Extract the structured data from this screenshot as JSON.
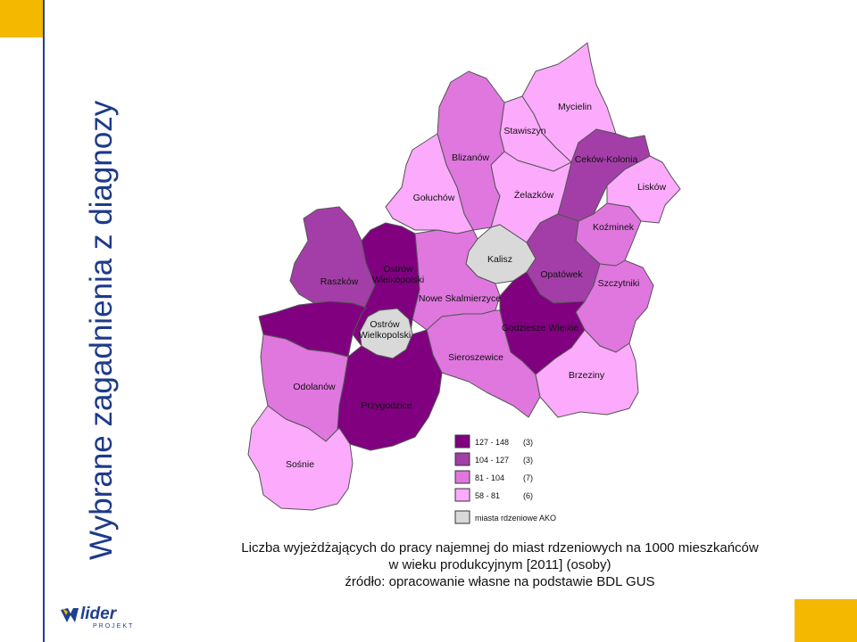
{
  "slide": {
    "title": "Wybrane zagadnienia z diagnozy",
    "caption_lines": [
      "Liczba wyjeżdżających do pracy najemnej do miast rdzeniowych na 1000 mieszkańców",
      "w wieku produkcyjnym [2011] (osoby)",
      "źródło: opracowanie własne na podstawie BDL GUS"
    ]
  },
  "colors": {
    "accent": "#f5b800",
    "title": "#1e3a8a",
    "class_1": "#800080",
    "class_2": "#a33ea8",
    "class_3": "#df77df",
    "class_4": "#fcaafc",
    "core": "#d9d9d9"
  },
  "map": {
    "regions": [
      {
        "name": "Mycielin",
        "cls": "class_4"
      },
      {
        "name": "Stawiszyn",
        "cls": "class_4"
      },
      {
        "name": "Ceków-Kolonia",
        "cls": "class_2"
      },
      {
        "name": "Blizanów",
        "cls": "class_3"
      },
      {
        "name": "Lisków",
        "cls": "class_4"
      },
      {
        "name": "Gołuchów",
        "cls": "class_4"
      },
      {
        "name": "Żelazków",
        "cls": "class_3"
      },
      {
        "name": "Koźminek",
        "cls": "class_3"
      },
      {
        "name": "Kalisz",
        "cls": "core"
      },
      {
        "name": "Raszków",
        "cls": "class_2"
      },
      {
        "name": "Ostrów Wielkopolski",
        "cls": "class_1"
      },
      {
        "name": "Opatówek",
        "cls": "class_2"
      },
      {
        "name": "Szczytniki",
        "cls": "class_3"
      },
      {
        "name": "Nowe Skalmierzyce",
        "cls": "class_3"
      },
      {
        "name": "Ostrów Wielkopolski",
        "cls": "core"
      },
      {
        "name": "Godziesze Wielkie",
        "cls": "class_1"
      },
      {
        "name": "Sieroszewice",
        "cls": "class_3"
      },
      {
        "name": "Brzeziny",
        "cls": "class_4"
      },
      {
        "name": "Odolanów",
        "cls": "class_3"
      },
      {
        "name": "Przygodzice",
        "cls": "class_1"
      },
      {
        "name": "Sośnie",
        "cls": "class_4"
      }
    ],
    "legend": [
      {
        "range": "127  -  148",
        "count": "(3)",
        "cls": "class_1"
      },
      {
        "range": "104  -  127",
        "count": "(3)",
        "cls": "class_2"
      },
      {
        "range": "81  -  104",
        "count": "(7)",
        "cls": "class_3"
      },
      {
        "range": "58  -   81",
        "count": "(6)",
        "cls": "class_4"
      },
      {
        "range": "miasta rdzeniowe AKO",
        "count": "",
        "cls": "core"
      }
    ]
  },
  "logo": {
    "word": "lider",
    "sub": "PROJEKT"
  }
}
